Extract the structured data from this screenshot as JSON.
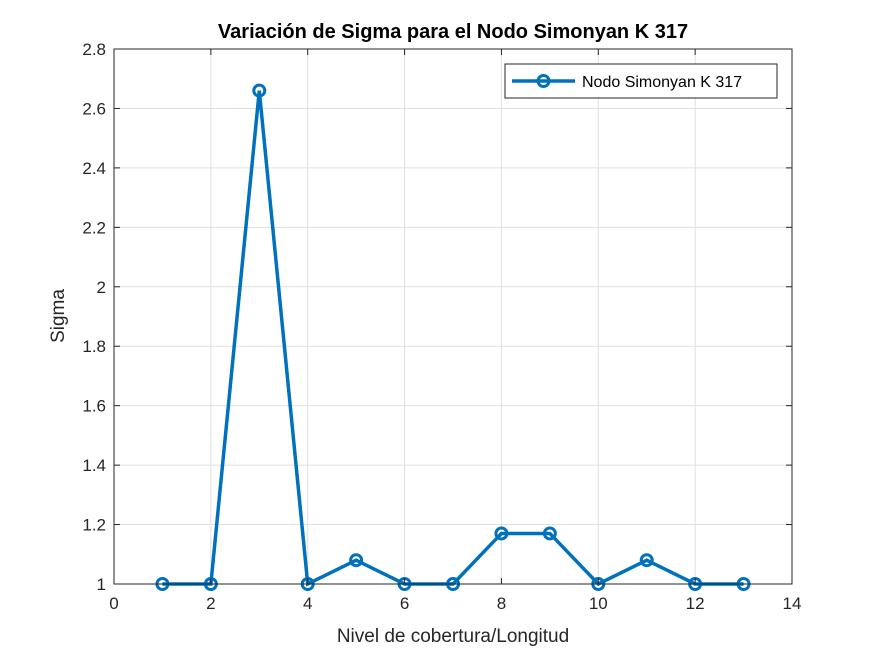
{
  "chart_data": {
    "type": "line",
    "title": "Variación de Sigma para el Nodo Simonyan K 317",
    "xlabel": "Nivel de cobertura/Longitud",
    "ylabel": "Sigma",
    "xlim": [
      0,
      14
    ],
    "ylim": [
      1,
      2.8
    ],
    "xticks": [
      0,
      2,
      4,
      6,
      8,
      10,
      12,
      14
    ],
    "yticks": [
      1,
      1.2,
      1.4,
      1.6,
      1.8,
      2,
      2.2,
      2.4,
      2.6,
      2.8
    ],
    "grid": true,
    "legend_position": "top-right",
    "series": [
      {
        "name": "Nodo Simonyan K 317",
        "color": "#0072BD",
        "marker": "circle",
        "x": [
          1,
          2,
          3,
          4,
          5,
          6,
          7,
          8,
          9,
          10,
          11,
          12,
          13
        ],
        "y": [
          1,
          1,
          2.66,
          1,
          1.08,
          1,
          1,
          1.17,
          1.17,
          1,
          1.08,
          1,
          1
        ]
      }
    ]
  }
}
